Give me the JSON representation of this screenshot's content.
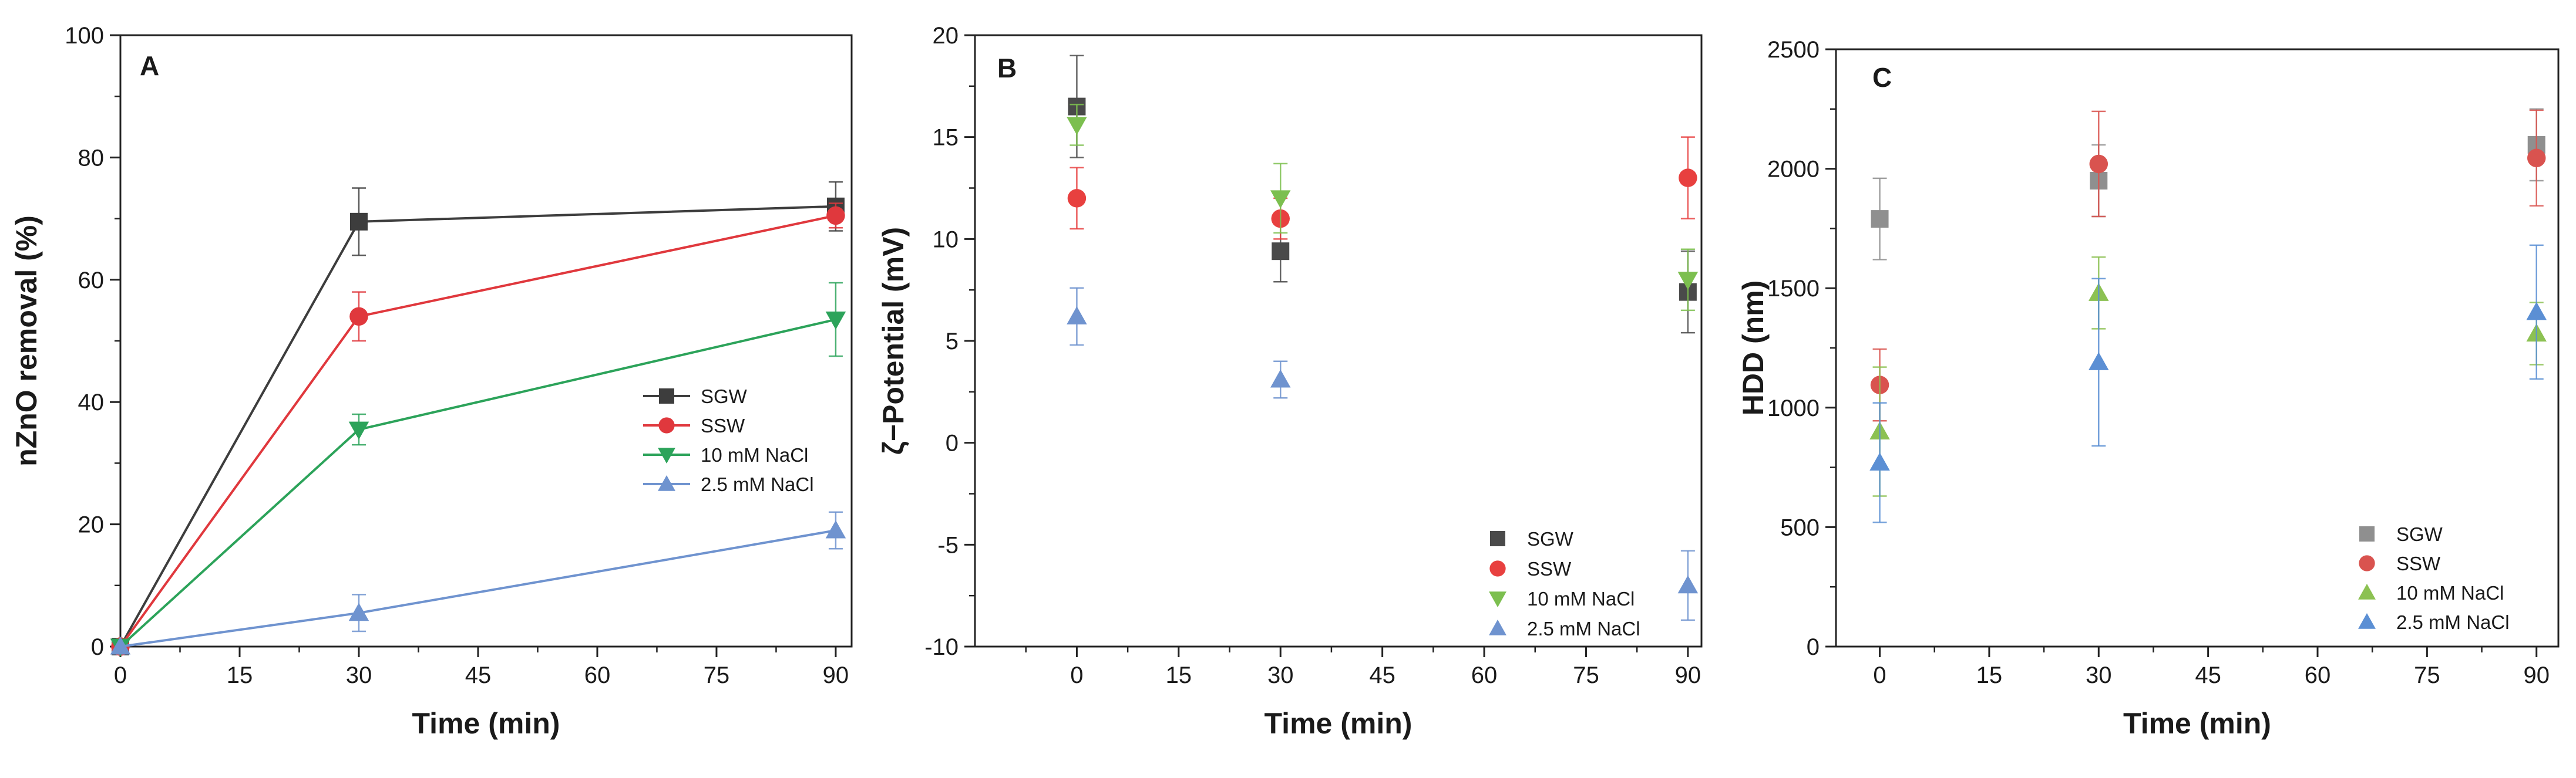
{
  "chart_data": [
    {
      "panel": "A",
      "type": "line",
      "xlabel": "Time (min)",
      "ylabel": "nZnO removal (%)",
      "xlim": [
        0,
        92
      ],
      "ylim": [
        0,
        100
      ],
      "xticks": [
        0,
        15,
        30,
        45,
        60,
        75,
        90
      ],
      "yticks": [
        0,
        20,
        40,
        60,
        80,
        100
      ],
      "grid": false,
      "legend_position": "center-right",
      "x": [
        0,
        30,
        90
      ],
      "series": [
        {
          "name": "SGW",
          "marker": "square",
          "color": "#3d3d3d",
          "values": [
            0,
            69.5,
            72
          ],
          "errors": [
            0,
            5.5,
            4
          ]
        },
        {
          "name": "SSW",
          "marker": "circle",
          "color": "#e0383d",
          "values": [
            0,
            54,
            70.5
          ],
          "errors": [
            0,
            4,
            2
          ]
        },
        {
          "name": "10 mM NaCl",
          "marker": "triangle-down",
          "color": "#2ca35a",
          "values": [
            0,
            35.5,
            53.5
          ],
          "errors": [
            0,
            2.5,
            6
          ]
        },
        {
          "name": "2.5 mM NaCl",
          "marker": "triangle-up",
          "color": "#6f93cf",
          "values": [
            0,
            5.5,
            19
          ],
          "errors": [
            0,
            3,
            3
          ]
        }
      ]
    },
    {
      "panel": "B",
      "type": "scatter",
      "xlabel": "Time (min)",
      "ylabel": "ζ−Potential (mV)",
      "xlim": [
        -15,
        92
      ],
      "ylim": [
        -10,
        20
      ],
      "xticks": [
        0,
        15,
        30,
        45,
        60,
        75,
        90
      ],
      "yticks": [
        -10,
        -5,
        0,
        5,
        10,
        15,
        20
      ],
      "grid": false,
      "legend_position": "bottom-right",
      "x": [
        0,
        30,
        90
      ],
      "series": [
        {
          "name": "SGW",
          "marker": "square",
          "color": "#4a4a4a",
          "values": [
            16.5,
            9.4,
            7.4
          ],
          "errors": [
            2.5,
            1.5,
            2
          ]
        },
        {
          "name": "SSW",
          "marker": "circle",
          "color": "#e8403f",
          "values": [
            12,
            11,
            13
          ],
          "errors": [
            1.5,
            1,
            2
          ]
        },
        {
          "name": "10 mM NaCl",
          "marker": "triangle-down",
          "color": "#7cbf4f",
          "values": [
            15.6,
            12,
            8
          ],
          "errors": [
            1,
            1.7,
            1.5
          ]
        },
        {
          "name": "2.5 mM NaCl",
          "marker": "triangle-up",
          "color": "#6f93cf",
          "values": [
            6.2,
            3.1,
            -7
          ],
          "errors": [
            1.4,
            0.9,
            1.7
          ]
        }
      ]
    },
    {
      "panel": "C",
      "type": "scatter",
      "xlabel": "Time (min)",
      "ylabel": "HDD (nm)",
      "xlim": [
        -6,
        93
      ],
      "ylim": [
        0,
        2500
      ],
      "xticks": [
        0,
        15,
        30,
        45,
        60,
        75,
        90
      ],
      "yticks": [
        0,
        500,
        1000,
        1500,
        2000,
        2500
      ],
      "grid": false,
      "legend_position": "bottom-right",
      "x": [
        0,
        30,
        90
      ],
      "series": [
        {
          "name": "SGW",
          "marker": "square",
          "color": "#8f8f8f",
          "values": [
            1790,
            1950,
            2100
          ],
          "errors": [
            170,
            150,
            150
          ]
        },
        {
          "name": "SSW",
          "marker": "circle",
          "color": "#d9534f",
          "values": [
            1095,
            2020,
            2045
          ],
          "errors": [
            150,
            220,
            200
          ]
        },
        {
          "name": "10 mM NaCl",
          "marker": "triangle-up",
          "color": "#8cc152",
          "values": [
            900,
            1480,
            1310
          ],
          "errors": [
            270,
            150,
            130
          ]
        },
        {
          "name": "2.5 mM NaCl",
          "marker": "triangle-up",
          "color": "#5b8fd4",
          "values": [
            770,
            1190,
            1400
          ],
          "errors": [
            250,
            350,
            280
          ]
        }
      ]
    }
  ]
}
